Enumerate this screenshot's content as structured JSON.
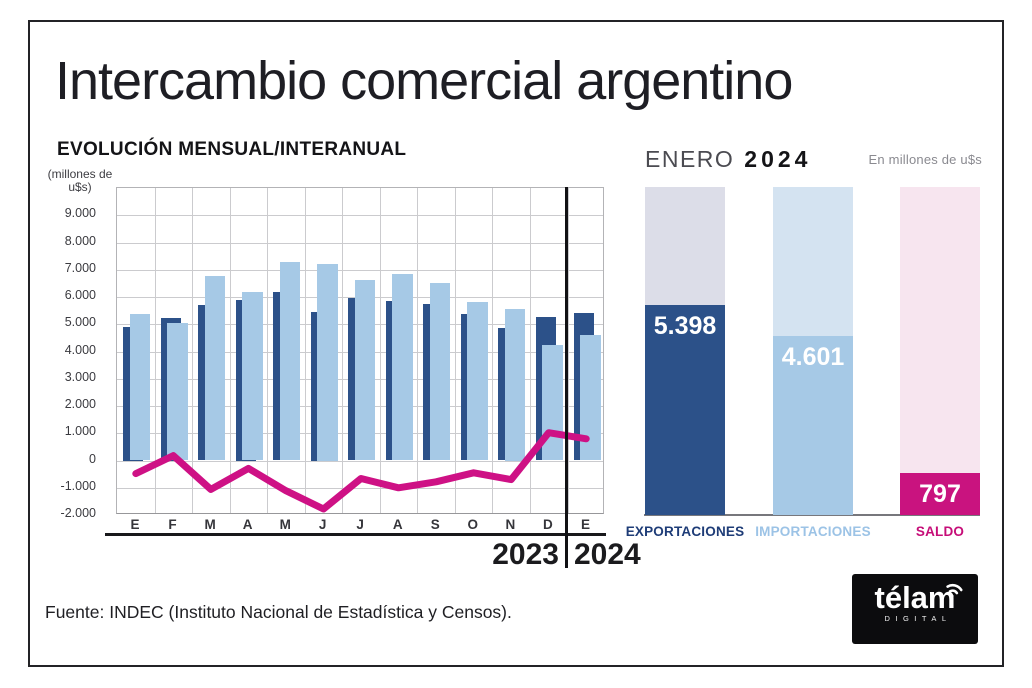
{
  "header": {
    "title": "Intercambio comercial argentino"
  },
  "left_chart": {
    "title": "EVOLUCIÓN MENSUAL/INTERANUAL",
    "unit_label": "(millones de u$s)",
    "year_left": "2023",
    "year_right": "2024"
  },
  "right_chart": {
    "period": "ENERO",
    "year": "2024",
    "unit": "En millones de u$s"
  },
  "footer": {
    "source": "Fuente: INDEC (Instituto Nacional de Estadística y Censos)."
  },
  "logo": {
    "brand": "télam",
    "sub": "DIGITAL"
  },
  "colors": {
    "exportaciones": "#2c5189",
    "importaciones": "#a6c9e6",
    "saldo": "#c9137f",
    "saldo_line": "#ce1185",
    "bg_exportaciones": "#dcdde8",
    "bg_importaciones": "#d4e3f1",
    "bg_saldo": "#f7e5ef",
    "label_exportaciones": "#1e3c77",
    "label_importaciones": "#9cc3e6",
    "label_saldo": "#c60d78"
  },
  "chart_data": [
    {
      "type": "bar",
      "title": "EVOLUCIÓN MENSUAL/INTERANUAL",
      "unit": "millones de u$s",
      "x": [
        "E",
        "F",
        "M",
        "A",
        "M",
        "J",
        "J",
        "A",
        "S",
        "O",
        "N",
        "D",
        "E"
      ],
      "x_years": [
        "2023",
        "2024"
      ],
      "ylim": [
        -2000,
        10000
      ],
      "yticks": [
        9000,
        8000,
        7000,
        6000,
        5000,
        4000,
        3000,
        2000,
        1000,
        0,
        -1000,
        -2000
      ],
      "grid": true,
      "legend_position": "none",
      "series": [
        {
          "name": "Exportaciones",
          "type": "bar",
          "values": [
            4900,
            5230,
            5720,
            5890,
            6180,
            5450,
            5960,
            5850,
            5740,
            5370,
            4860,
            5250,
            5398
          ]
        },
        {
          "name": "Importaciones",
          "type": "bar",
          "values": [
            5380,
            5050,
            6780,
            6180,
            7290,
            7230,
            6620,
            6850,
            6520,
            5820,
            5560,
            4230,
            4601
          ]
        },
        {
          "name": "Saldo",
          "type": "line",
          "values": [
            -480,
            180,
            -1060,
            -290,
            -1110,
            -1780,
            -660,
            -1000,
            -780,
            -450,
            -700,
            1020,
            797
          ]
        }
      ]
    },
    {
      "type": "bar",
      "title": "ENERO 2024",
      "unit": "En millones de u$s",
      "categories": [
        "EXPORTACIONES",
        "IMPORTACIONES",
        "SALDO"
      ],
      "values": [
        5398,
        4601,
        797
      ],
      "value_labels": [
        "5.398",
        "4.601",
        "797"
      ],
      "ylim": [
        0,
        8500
      ],
      "grid": false,
      "legend_position": "below"
    }
  ]
}
